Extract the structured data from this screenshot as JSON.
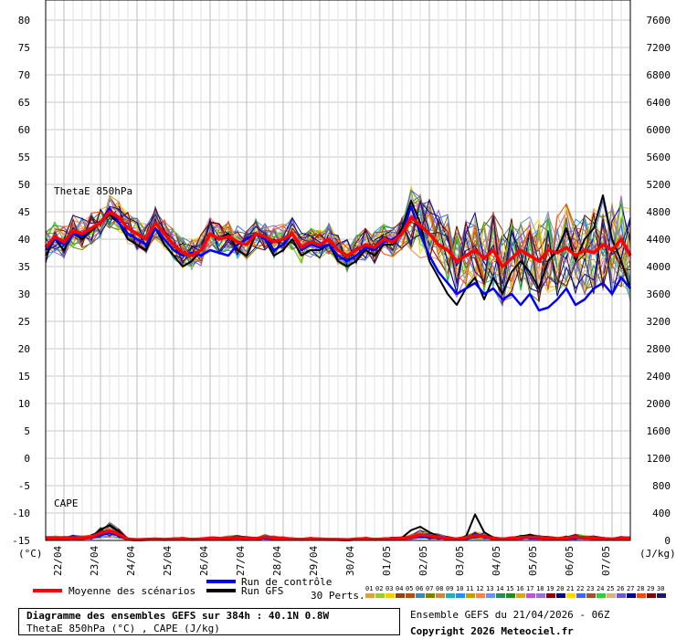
{
  "chart_data": {
    "type": "line",
    "panels": [
      "ThetaE 850hPa",
      "CAPE"
    ],
    "left_axis": {
      "unit": "(°C)",
      "ticks": [
        80,
        75,
        70,
        65,
        60,
        55,
        50,
        45,
        40,
        35,
        30,
        25,
        20,
        15,
        10,
        5,
        0,
        -5,
        -10,
        -15
      ]
    },
    "right_axis": {
      "unit": "(J/kg)",
      "ticks": [
        7600,
        7200,
        6800,
        6400,
        6000,
        5600,
        5200,
        4800,
        4400,
        4000,
        3600,
        3200,
        2800,
        2400,
        2000,
        1600,
        1200,
        800,
        400,
        0
      ]
    },
    "x_dates": [
      "22/04",
      "23/04",
      "24/04",
      "25/04",
      "26/04",
      "27/04",
      "28/04",
      "29/04",
      "30/04",
      "01/05",
      "02/05",
      "03/05",
      "04/05",
      "05/05",
      "06/05",
      "07/05"
    ],
    "steps_6h": 65,
    "thetae_mean": [
      38.5,
      40.5,
      39.5,
      41.5,
      41,
      42,
      43,
      45,
      44,
      42,
      41,
      40,
      43,
      41,
      39,
      37.5,
      37,
      38,
      41,
      40,
      40.5,
      39.5,
      39,
      41,
      40.5,
      39.5,
      40,
      41,
      38.5,
      39.5,
      39,
      40,
      38,
      37,
      38,
      39,
      38.5,
      40,
      39.5,
      41,
      44,
      42.5,
      41,
      39,
      38,
      36,
      37,
      38,
      36.5,
      38,
      35,
      36.5,
      38,
      37,
      36,
      38,
      37.5,
      38.5,
      37,
      38,
      37.5,
      39,
      38,
      40,
      37
    ],
    "thetae_control": [
      38,
      40,
      39,
      41,
      40.5,
      42,
      43,
      45.5,
      43,
      41,
      40,
      39,
      42,
      40,
      38,
      37,
      37.5,
      37,
      38,
      37.5,
      37,
      39,
      40,
      41,
      40,
      38,
      39,
      41,
      38,
      39,
      38.5,
      39,
      37,
      36,
      37,
      38.5,
      38,
      39.5,
      40,
      41,
      46,
      41,
      37,
      34,
      32,
      30,
      31,
      32,
      30,
      31,
      29,
      30,
      28,
      30,
      27,
      27.5,
      29,
      31,
      28,
      29,
      31,
      32,
      30,
      33,
      31
    ],
    "thetae_gfs": [
      37,
      40,
      38,
      41,
      40,
      41.5,
      43,
      44.5,
      43,
      40,
      39,
      38,
      42,
      39,
      37,
      35,
      36,
      38,
      41,
      40,
      41,
      38,
      37,
      41,
      40,
      37,
      38,
      40,
      37,
      38,
      38,
      39,
      36,
      35,
      36,
      38,
      37,
      39,
      39,
      42,
      47,
      43,
      36,
      33,
      30,
      28,
      31,
      33,
      29,
      33,
      30,
      34,
      36,
      34,
      31,
      36,
      38,
      42,
      36,
      40,
      42,
      48,
      40,
      36,
      31
    ],
    "cape_mean": [
      30,
      35,
      30,
      40,
      35,
      45,
      110,
      140,
      90,
      20,
      10,
      15,
      20,
      15,
      20,
      25,
      15,
      20,
      30,
      25,
      35,
      40,
      30,
      25,
      50,
      35,
      30,
      20,
      15,
      25,
      20,
      15,
      15,
      10,
      20,
      25,
      15,
      20,
      25,
      30,
      45,
      80,
      70,
      50,
      30,
      20,
      40,
      70,
      60,
      30,
      20,
      30,
      40,
      50,
      40,
      30,
      25,
      35,
      50,
      40,
      35,
      25,
      20,
      30,
      30
    ],
    "cape_control": [
      20,
      25,
      20,
      30,
      25,
      35,
      80,
      110,
      70,
      10,
      5,
      10,
      15,
      10,
      15,
      20,
      10,
      15,
      20,
      15,
      25,
      30,
      20,
      15,
      35,
      25,
      20,
      15,
      10,
      20,
      15,
      10,
      10,
      5,
      15,
      20,
      10,
      15,
      20,
      25,
      40,
      60,
      50,
      40,
      20,
      10,
      30,
      90,
      60,
      20,
      10,
      20,
      30,
      40,
      30,
      20,
      15,
      25,
      40,
      30,
      25,
      20,
      15,
      25,
      20
    ],
    "cape_gfs": [
      25,
      30,
      25,
      35,
      30,
      40,
      160,
      220,
      130,
      15,
      10,
      20,
      20,
      10,
      25,
      20,
      10,
      25,
      35,
      30,
      30,
      50,
      35,
      20,
      60,
      30,
      25,
      15,
      10,
      30,
      15,
      20,
      10,
      10,
      25,
      30,
      10,
      20,
      30,
      40,
      150,
      200,
      120,
      60,
      30,
      15,
      50,
      380,
      120,
      40,
      20,
      40,
      60,
      80,
      50,
      30,
      20,
      40,
      60,
      50,
      40,
      20,
      10,
      20,
      20
    ],
    "series_colors": {
      "mean": "#ff0000",
      "control": "#0000ff",
      "gfs": "#000000"
    }
  },
  "labels": {
    "thetae_panel": "ThetaE 850hPa",
    "cape_panel": "CAPE",
    "left_unit": "(°C)",
    "right_unit": "(J/kg)",
    "legend_mean": "Moyenne des scénarios",
    "legend_control": "Run de contrôle",
    "legend_gfs": "Run GFS",
    "perts_count": "30 Perts."
  },
  "perturbations": {
    "ids": [
      "01",
      "02",
      "03",
      "04",
      "05",
      "06",
      "07",
      "08",
      "09",
      "10",
      "11",
      "12",
      "13",
      "14",
      "15",
      "16",
      "17",
      "18",
      "19",
      "20",
      "21",
      "22",
      "23",
      "24",
      "25",
      "26",
      "27",
      "28",
      "29",
      "30"
    ],
    "colors": [
      "#e0a040",
      "#9acd32",
      "#ffcc00",
      "#8b4513",
      "#b05010",
      "#4682b4",
      "#808000",
      "#cd853f",
      "#20b2aa",
      "#1e90ff",
      "#c0a000",
      "#ff7f50",
      "#6495ed",
      "#2e8b57",
      "#228b22",
      "#daa520",
      "#ba55d3",
      "#9370db",
      "#8b0000",
      "#000080",
      "#ffd700",
      "#4169e1",
      "#a0522d",
      "#32cd32",
      "#d2b48c",
      "#6a5acd",
      "#00008b",
      "#ff4500",
      "#800000",
      "#191970"
    ]
  },
  "footer": {
    "title_line1": "Diagramme des ensembles GEFS sur 384h : 40.1N 0.8W",
    "title_line2": "ThetaE 850hPa (°C) , CAPE (J/kg)",
    "ensemble_line": "Ensemble GEFS du 21/04/2026 - 06Z",
    "copyright": "Copyright 2026 Meteociel.fr"
  }
}
